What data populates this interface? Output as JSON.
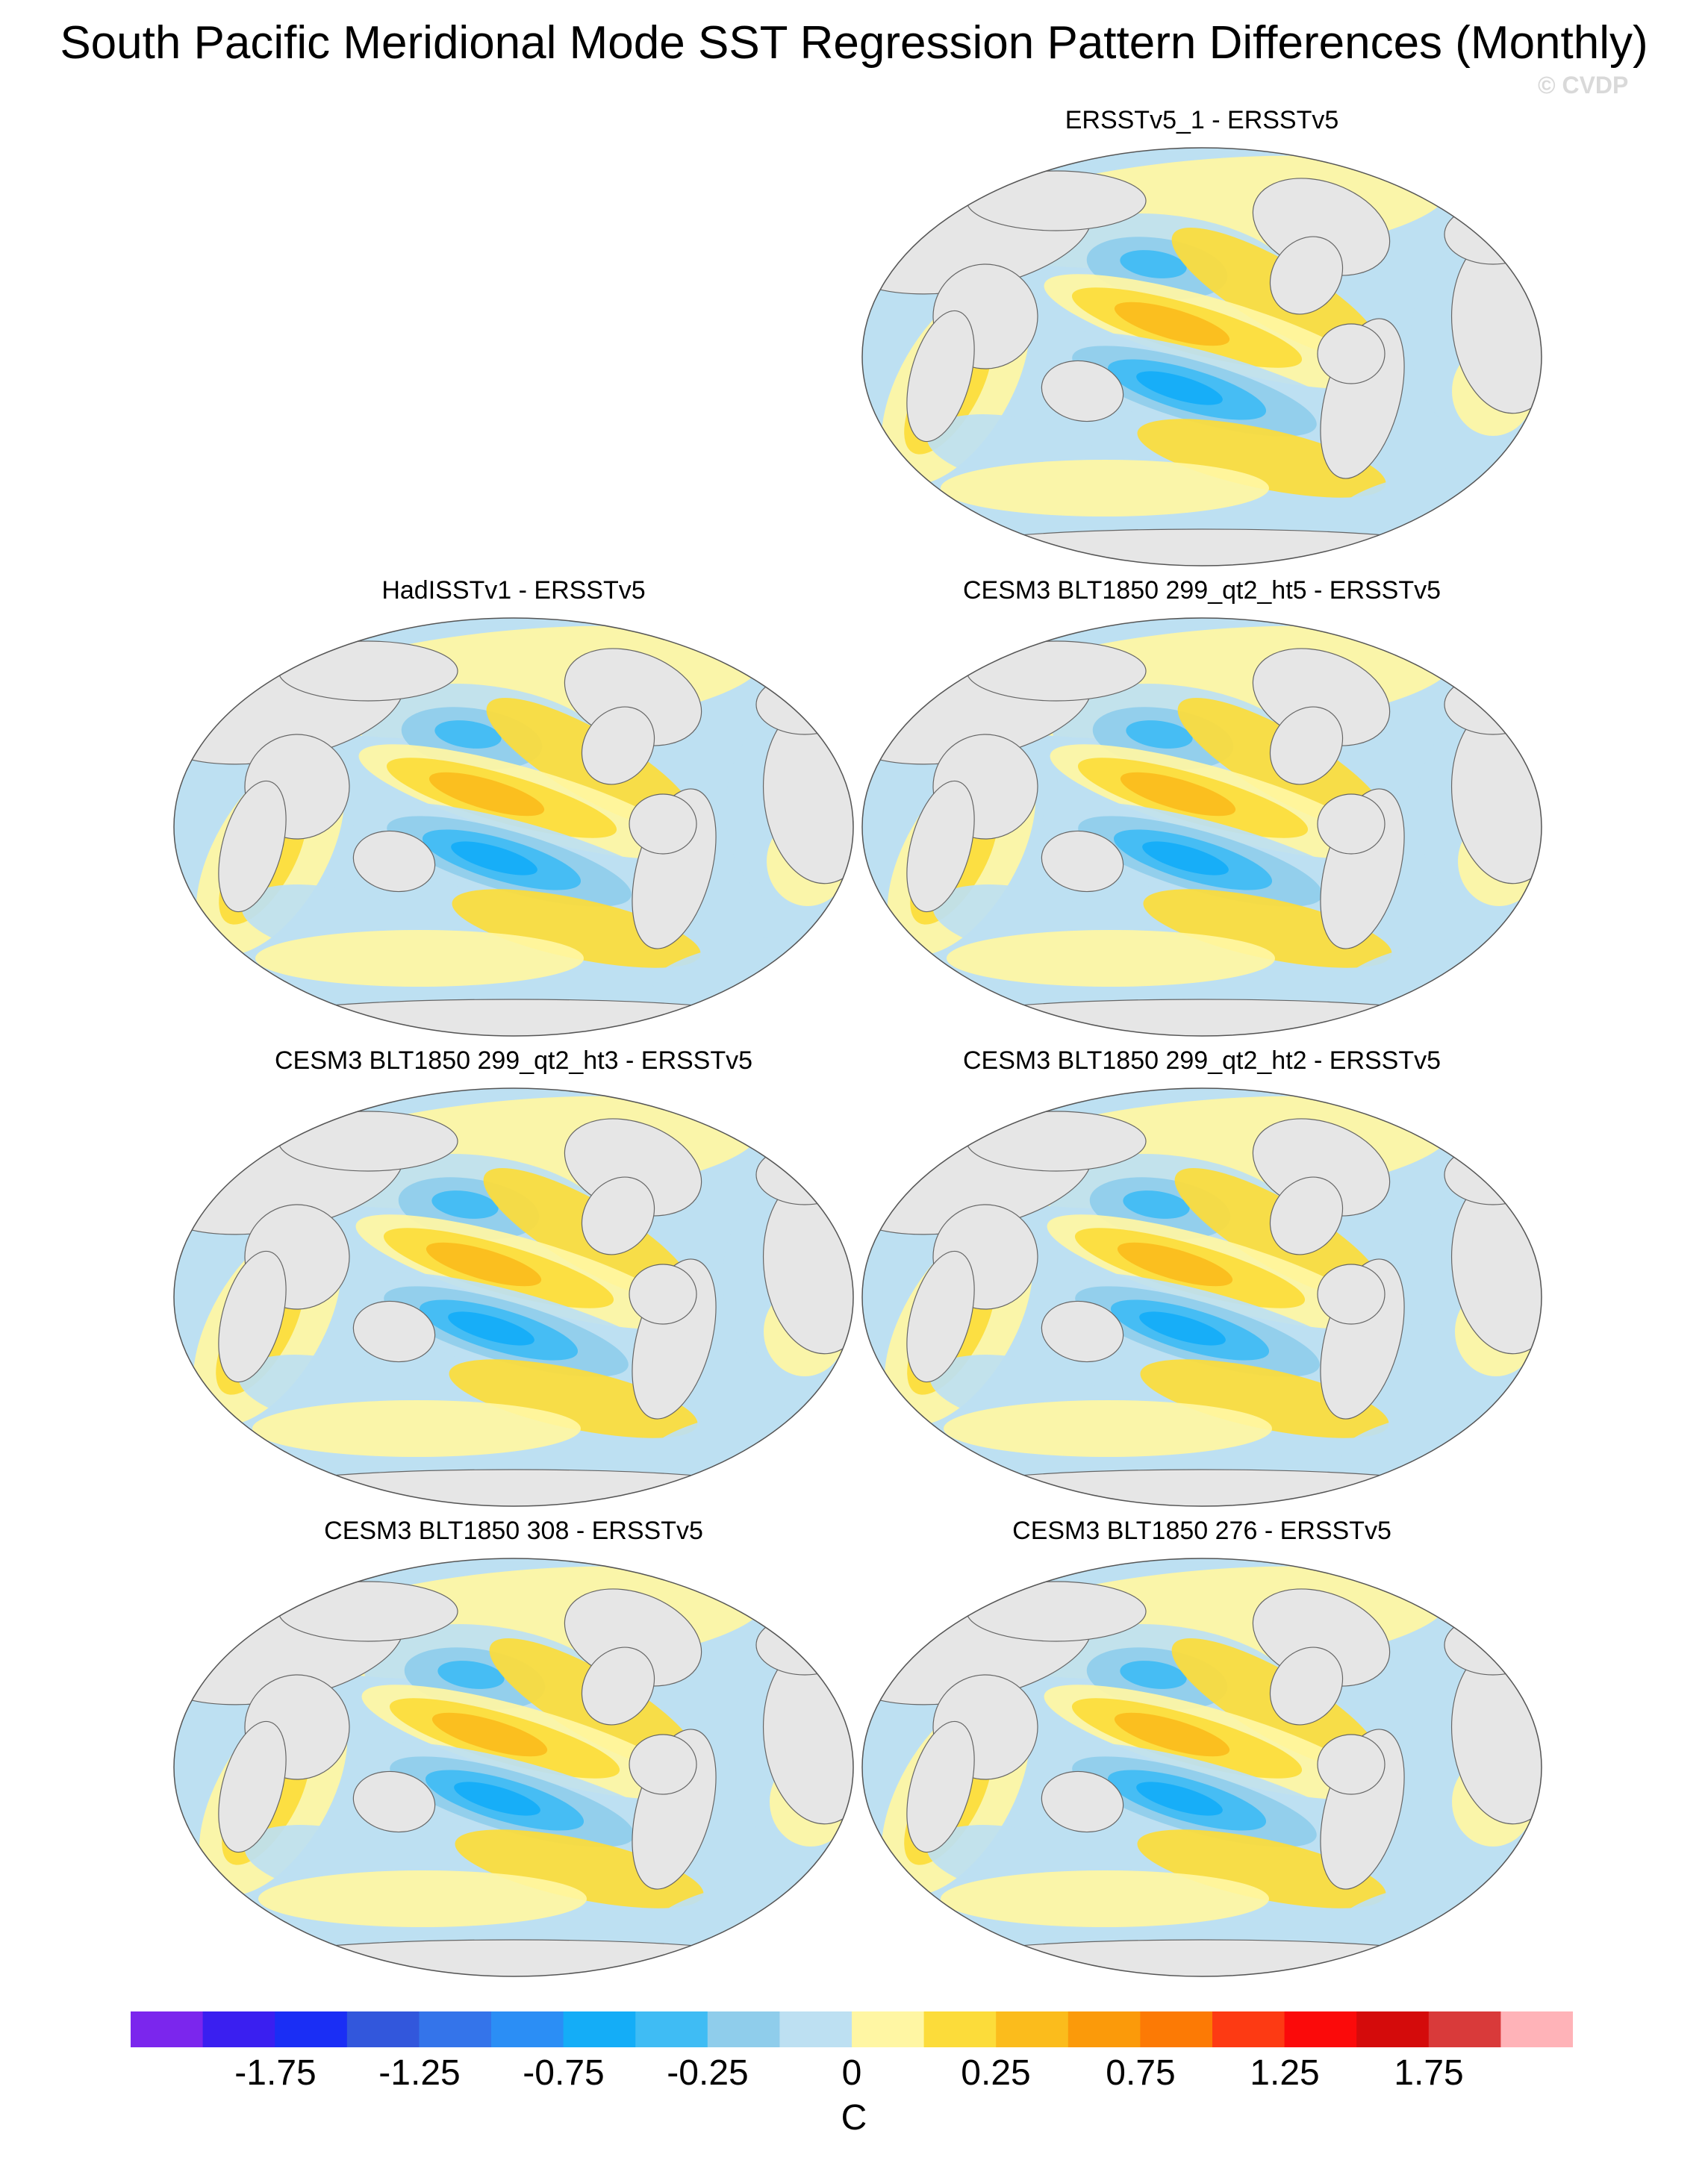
{
  "title": "South Pacific Meridional Mode SST Regression Pattern Differences (Monthly)",
  "watermark": "© CVDP",
  "panels": [
    {
      "title": "ERSSTv5_1 - ERSSTv5"
    },
    {
      "title": "HadISSTv1 - ERSSTv5"
    },
    {
      "title": "CESM3 BLT1850 299_qt2_ht5 - ERSSTv5"
    },
    {
      "title": "CESM3 BLT1850 299_qt2_ht3 - ERSSTv5"
    },
    {
      "title": "CESM3 BLT1850 299_qt2_ht2 - ERSSTv5"
    },
    {
      "title": "CESM3 BLT1850 308 - ERSSTv5"
    },
    {
      "title": "CESM3 BLT1850 276 - ERSSTv5"
    }
  ],
  "colorbar": {
    "unit": "C",
    "labels": [
      "-1.75",
      "-1.25",
      "-0.75",
      "-0.25",
      "0",
      "0.25",
      "0.75",
      "1.25",
      "1.75"
    ],
    "colors": [
      "#7b26ed",
      "#3a1ff0",
      "#1a2ef5",
      "#3257dc",
      "#3474ea",
      "#2b8ef5",
      "#14adf7",
      "#3fbcf4",
      "#8fcdeb",
      "#bde0f2",
      "#fff6a3",
      "#fcdc3a",
      "#fbbc1c",
      "#fb9a0a",
      "#fc7a05",
      "#fd3a13",
      "#fb0a0a",
      "#d40b0b",
      "#d93a3a",
      "#ffb3b8"
    ]
  }
}
